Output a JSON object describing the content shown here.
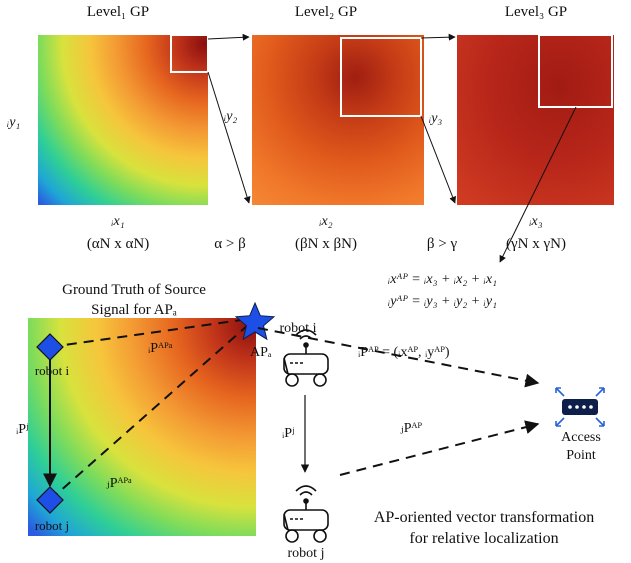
{
  "top": {
    "level1_label": "Level₁ GP",
    "level2_label": "Level₂ GP",
    "level3_label": "Level₃ GP",
    "y1": "ᵢy₁",
    "y2": "ᵢy₂",
    "y3": "ᵢy₃",
    "x1": "ᵢx₁",
    "x2": "ᵢx₂",
    "x3": "ᵢx₃",
    "size1": "(αN x αN)",
    "size2": "(βN x βN)",
    "size3": "(γN x γN)",
    "cmp1": "α > β",
    "cmp2": "β > γ",
    "eq_x": "ᵢxᴬᴾ = ᵢx₃ + ᵢx₂ + ᵢx₁",
    "eq_y": "ᵢyᴬᴾ = ᵢy₃ + ᵢy₂ + ᵢy₁"
  },
  "bottom": {
    "ground_truth_line1": "Ground Truth of Source",
    "ground_truth_line2": "Signal for APₐ",
    "robot_i_map": "robot i",
    "robot_j_map": "robot j",
    "ip_j_map": "ᵢPʲ",
    "ip_ap_a": "ᵢPᴬᴾᵃ",
    "jp_ap_a": "ⱼPᴬᴾᵃ",
    "ap_a_label": "APₐ",
    "robot_i": "robot i",
    "robot_j": "robot j",
    "ip_j": "ᵢPʲ",
    "ip_ap_eq": "ᵢPᴬᴾ = (ᵢxᴬᴾ, ᵢyᴬᴾ)",
    "jp_ap": "ⱼPᴬᴾ",
    "access_point_line1": "Access",
    "access_point_line2": "Point",
    "caption_line1": "AP-oriented vector transformation",
    "caption_line2": "for relative localization"
  },
  "colors": {
    "star": "#1d4fe6",
    "diamond": "#1d4fe6",
    "router": "#0d1e4a",
    "router_arrows": "#2a63d8"
  }
}
